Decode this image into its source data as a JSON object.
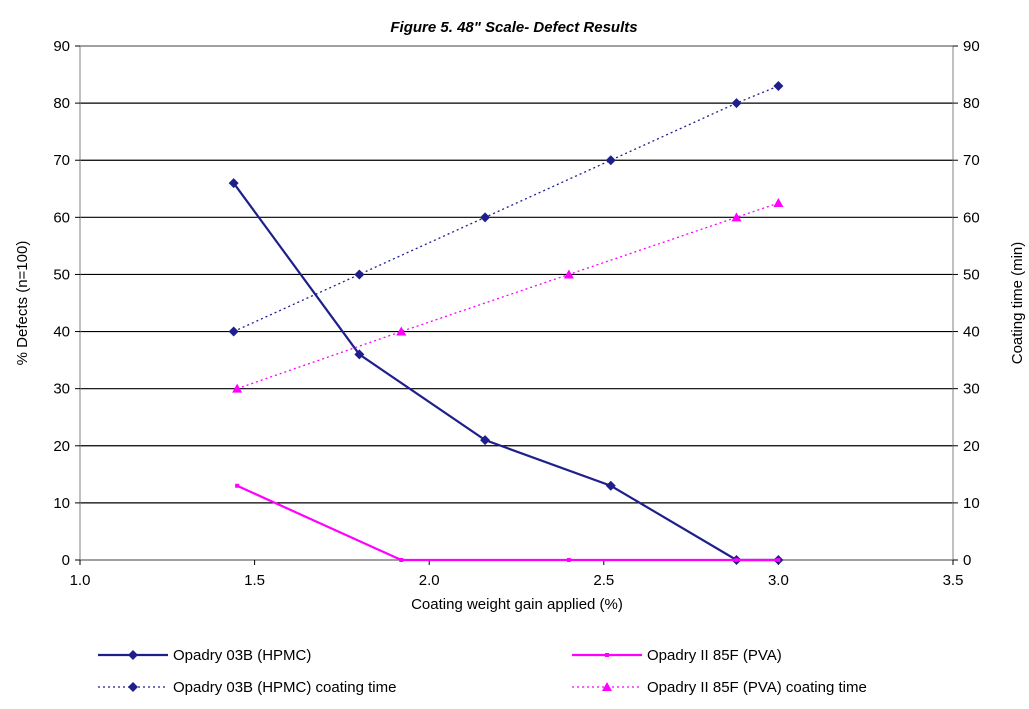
{
  "chart_data": {
    "type": "line",
    "title": "Figure 5. 48\" Scale- Defect Results",
    "xlabel": "Coating weight gain applied (%)",
    "ylabel": "% Defects (n=100)",
    "y2label": "Coating time (min)",
    "xlim": [
      1.0,
      3.5
    ],
    "ylim": [
      0,
      90
    ],
    "y2lim": [
      0,
      90
    ],
    "x_ticks": [
      "1.0",
      "1.5",
      "2.0",
      "2.5",
      "3.0",
      "3.5"
    ],
    "y_ticks": [
      "0",
      "10",
      "20",
      "30",
      "40",
      "50",
      "60",
      "70",
      "80",
      "90"
    ],
    "y2_ticks": [
      "0",
      "10",
      "20",
      "30",
      "40",
      "50",
      "60",
      "70",
      "80",
      "90"
    ],
    "grid": "horizontal",
    "legend_position": "bottom",
    "series": [
      {
        "name": "Opadry 03B (HPMC)",
        "axis": "left",
        "color": "#1f1f8c",
        "style": "solid",
        "marker": "diamond",
        "points": [
          [
            1.44,
            66
          ],
          [
            1.8,
            36
          ],
          [
            2.16,
            21
          ],
          [
            2.52,
            13
          ],
          [
            2.88,
            0
          ],
          [
            3.0,
            0
          ]
        ]
      },
      {
        "name": "Opadry II 85F (PVA)",
        "axis": "left",
        "color": "#ff00ff",
        "style": "solid",
        "marker": "small",
        "points": [
          [
            1.45,
            13
          ],
          [
            1.92,
            0
          ],
          [
            2.4,
            0
          ],
          [
            2.88,
            0
          ],
          [
            3.0,
            0
          ]
        ]
      },
      {
        "name": "Opadry 03B (HPMC) coating time",
        "axis": "right",
        "color": "#1f1f8c",
        "style": "dotted",
        "marker": "diamond",
        "points": [
          [
            1.44,
            40
          ],
          [
            1.8,
            50
          ],
          [
            2.16,
            60
          ],
          [
            2.52,
            70
          ],
          [
            2.88,
            80
          ],
          [
            3.0,
            83
          ]
        ]
      },
      {
        "name": "Opadry II 85F (PVA) coating time",
        "axis": "right",
        "color": "#ff00ff",
        "style": "dotted",
        "marker": "triangle",
        "points": [
          [
            1.45,
            30
          ],
          [
            1.92,
            40
          ],
          [
            2.4,
            50
          ],
          [
            2.88,
            60
          ],
          [
            3.0,
            62.5
          ]
        ]
      }
    ]
  }
}
